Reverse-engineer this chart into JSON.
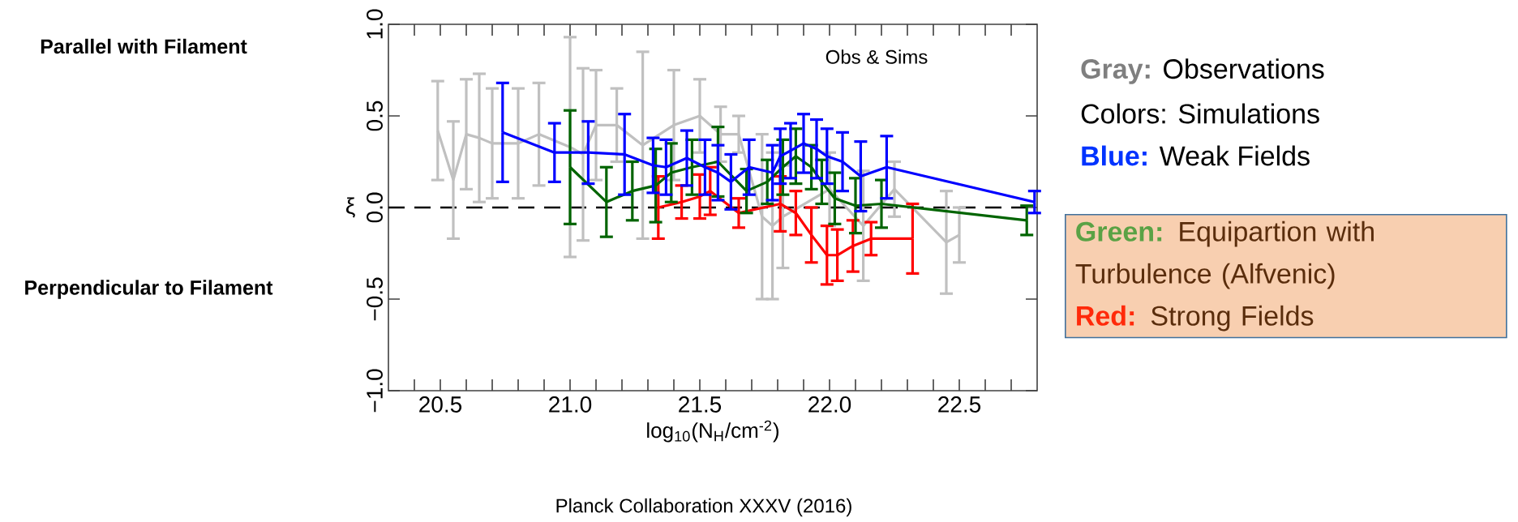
{
  "chart_data": {
    "type": "line",
    "xlabel": "log$_{10}$(N$_{H}$/cm$^{-2}$)",
    "ylabel": "ξ",
    "xlim": [
      20.3,
      22.8
    ],
    "ylim": [
      -1,
      1
    ],
    "xticks": [
      {
        "value": 20.4,
        "label": null
      },
      {
        "value": 20.5,
        "label": "20.5"
      },
      {
        "value": 20.6,
        "label": null
      },
      {
        "value": 20.7,
        "label": null
      },
      {
        "value": 20.8,
        "label": null
      },
      {
        "value": 20.9,
        "label": null
      },
      {
        "value": 21,
        "label": "21.0"
      },
      {
        "value": 21.1,
        "label": null
      },
      {
        "value": 21.2,
        "label": null
      },
      {
        "value": 21.3,
        "label": null
      },
      {
        "value": 21.4,
        "label": null
      },
      {
        "value": 21.5,
        "label": "21.5"
      },
      {
        "value": 21.6,
        "label": null
      },
      {
        "value": 21.7,
        "label": null
      },
      {
        "value": 21.8,
        "label": null
      },
      {
        "value": 21.9,
        "label": null
      },
      {
        "value": 22,
        "label": "22.0"
      },
      {
        "value": 22.1,
        "label": null
      },
      {
        "value": 22.2,
        "label": null
      },
      {
        "value": 22.3,
        "label": null
      },
      {
        "value": 22.4,
        "label": null
      },
      {
        "value": 22.5,
        "label": "22.5"
      },
      {
        "value": 22.6,
        "label": null
      },
      {
        "value": 22.7,
        "label": null
      }
    ],
    "yticks": [
      {
        "value": -1,
        "label": "−1.0"
      },
      {
        "value": -0.5,
        "label": "−0.5"
      },
      {
        "value": 0,
        "label": "0.0"
      },
      {
        "value": 0.5,
        "label": "0.5"
      },
      {
        "value": 1,
        "label": "1.0"
      }
    ],
    "ref_lines": [
      {
        "axis": "y",
        "value": 0,
        "color": "#000000",
        "line_style": "dashed"
      }
    ],
    "series": [
      {
        "color": "#c0c0c0",
        "x": [
          20.49,
          20.55,
          20.6,
          20.65,
          20.7,
          20.8,
          20.88,
          21.0,
          21.05,
          21.1,
          21.18,
          21.28,
          21.4,
          21.5,
          21.58,
          21.65,
          21.74,
          21.78,
          21.82,
          22.0,
          22.13,
          22.25,
          22.45,
          22.5
        ],
        "values": [
          0.42,
          0.15,
          0.4,
          0.38,
          0.35,
          0.35,
          0.4,
          0.33,
          0.29,
          0.45,
          0.45,
          0.34,
          0.45,
          0.5,
          0.4,
          0.4,
          -0.05,
          -0.1,
          -0.05,
          0.1,
          -0.1,
          0.1,
          -0.19,
          -0.15
        ],
        "errors": [
          0.27,
          0.32,
          0.3,
          0.35,
          0.3,
          0.3,
          0.28,
          0.6,
          0.47,
          0.3,
          0.2,
          0.51,
          0.3,
          0.2,
          0.15,
          0.1,
          0.45,
          0.4,
          0.28,
          0.2,
          0.3,
          0.15,
          0.28,
          0.15
        ]
      },
      {
        "color": "#ff0000",
        "x": [
          21.34,
          21.43,
          21.5,
          21.54,
          21.65,
          21.81,
          21.87,
          21.93,
          21.99,
          22.03,
          22.09,
          22.16,
          22.32
        ],
        "values": [
          0.0,
          0.03,
          0.06,
          0.09,
          -0.03,
          0.02,
          -0.03,
          -0.15,
          -0.26,
          -0.26,
          -0.21,
          -0.17,
          -0.17
        ],
        "errors": [
          0.17,
          0.09,
          0.12,
          0.13,
          0.08,
          0.15,
          0.12,
          0.15,
          0.16,
          0.14,
          0.14,
          0.09,
          0.19
        ]
      },
      {
        "color": "#006400",
        "x": [
          21.0,
          21.14,
          21.24,
          21.33,
          21.39,
          21.47,
          21.57,
          21.68,
          21.76,
          21.82,
          21.87,
          21.93,
          21.97,
          22.02,
          22.1,
          22.2,
          22.76
        ],
        "values": [
          0.22,
          0.03,
          0.09,
          0.12,
          0.19,
          0.22,
          0.25,
          0.09,
          0.14,
          0.22,
          0.28,
          0.22,
          0.14,
          0.05,
          0.01,
          0.02,
          -0.07
        ],
        "errors": [
          0.31,
          0.19,
          0.16,
          0.2,
          0.16,
          0.15,
          0.19,
          0.12,
          0.12,
          0.15,
          0.15,
          0.12,
          0.12,
          0.14,
          0.15,
          0.13,
          0.08
        ]
      },
      {
        "color": "#0000ff",
        "x": [
          20.74,
          20.94,
          21.07,
          21.21,
          21.32,
          21.37,
          21.45,
          21.52,
          21.57,
          21.62,
          21.69,
          21.78,
          21.81,
          21.85,
          21.9,
          21.95,
          21.99,
          22.05,
          22.12,
          22.22,
          22.79
        ],
        "values": [
          0.41,
          0.3,
          0.3,
          0.29,
          0.23,
          0.22,
          0.27,
          0.22,
          0.19,
          0.14,
          0.22,
          0.19,
          0.28,
          0.31,
          0.35,
          0.32,
          0.28,
          0.25,
          0.17,
          0.22,
          0.03
        ],
        "errors": [
          0.27,
          0.16,
          0.17,
          0.22,
          0.15,
          0.15,
          0.15,
          0.15,
          0.15,
          0.15,
          0.15,
          0.15,
          0.15,
          0.15,
          0.16,
          0.16,
          0.15,
          0.16,
          0.19,
          0.17,
          0.06
        ]
      }
    ],
    "annotations": [
      "Obs & Sims",
      "Parallel with Filament",
      "Perpendicular to Filament",
      "Gray:",
      "Observations",
      "Colors: Simulations",
      "Blue:",
      "Weak Fields",
      "Green:",
      "Equipartion with Turbulence (Alfvenic)",
      "Red:",
      "Strong Fields",
      "Planck Collaboration XXXV (2016)"
    ]
  }
}
